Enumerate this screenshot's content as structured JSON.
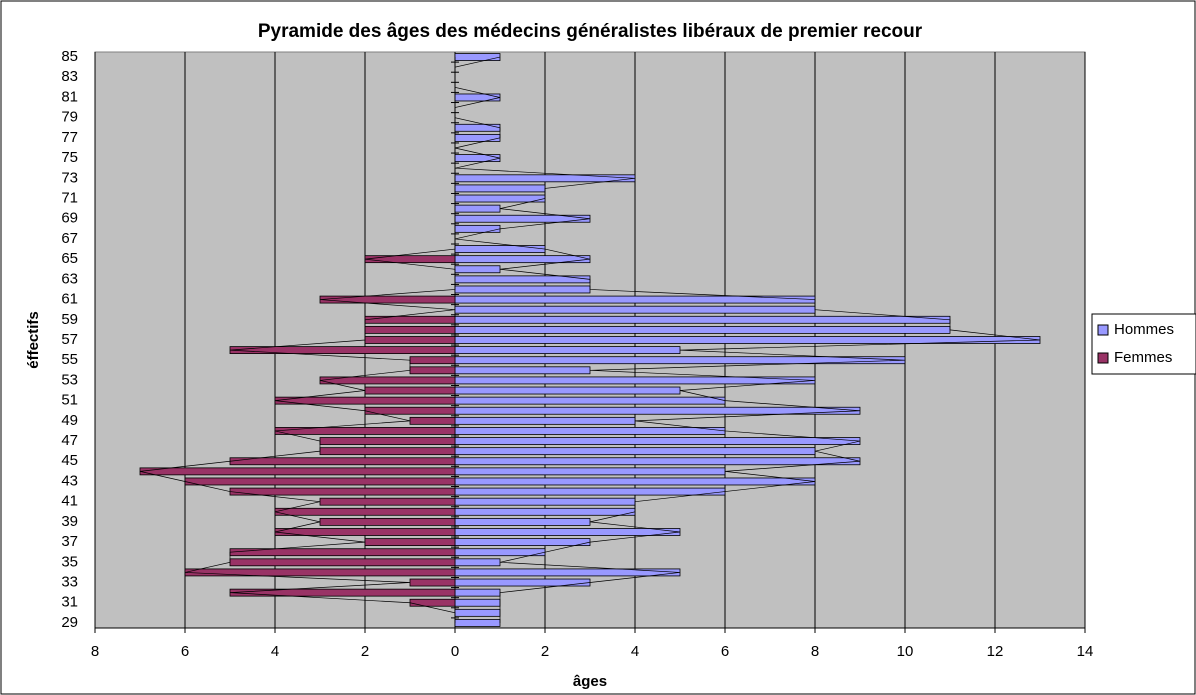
{
  "chart_data": {
    "type": "bar",
    "orientation": "horizontal",
    "title": "Pyramide des âges des médecins généralistes libéraux de premier recour",
    "x_label": "âges",
    "y_label": "éffectifs",
    "categories": [
      "29",
      null,
      "31",
      null,
      "33",
      null,
      "35",
      null,
      "37",
      null,
      "39",
      null,
      "41",
      null,
      "43",
      null,
      "45",
      null,
      "47",
      null,
      "49",
      null,
      "51",
      null,
      "53",
      null,
      "55",
      null,
      "57",
      null,
      "59",
      null,
      "61",
      null,
      "63",
      null,
      "65",
      null,
      "67",
      null,
      "69",
      null,
      "71",
      null,
      "73",
      null,
      "75",
      null,
      "77",
      null,
      "79",
      null,
      "81",
      null,
      "83",
      null,
      "85"
    ],
    "series": [
      {
        "name": "Hommes",
        "color": "#9999ff",
        "values": [
          1,
          1,
          1,
          1,
          3,
          5,
          1,
          2,
          3,
          5,
          3,
          4,
          4,
          6,
          8,
          6,
          9,
          8,
          9,
          6,
          4,
          9,
          6,
          5,
          8,
          3,
          10,
          5,
          13,
          11,
          11,
          8,
          8,
          3,
          3,
          1,
          3,
          2,
          0,
          1,
          3,
          1,
          2,
          2,
          4,
          0,
          1,
          0,
          1,
          1,
          0,
          0,
          1,
          0,
          0,
          0,
          1
        ]
      },
      {
        "name": "Femmes",
        "color": "#993366",
        "values": [
          0,
          0,
          -1,
          -5,
          -1,
          -6,
          -5,
          -5,
          -2,
          -4,
          -3,
          -4,
          -3,
          -5,
          -6,
          -7,
          -5,
          -3,
          -3,
          -4,
          -1,
          -2,
          -4,
          -2,
          -3,
          -1,
          -1,
          -5,
          -2,
          -2,
          -2,
          0,
          -3,
          0,
          0,
          0,
          -2,
          0,
          0,
          0,
          0,
          0,
          0,
          0,
          0,
          0,
          0,
          0,
          0,
          0,
          0,
          0,
          0,
          0,
          0,
          0,
          0
        ]
      }
    ],
    "xlim": [
      -8,
      14
    ],
    "xticks": [
      {
        "value": -8,
        "label": "8"
      },
      {
        "value": -6,
        "label": "6"
      },
      {
        "value": -4,
        "label": "4"
      },
      {
        "value": -2,
        "label": "2"
      },
      0,
      2,
      4,
      6,
      8,
      10,
      12,
      14
    ],
    "negative_tick_color": "#ff0000",
    "grid": true,
    "legend": "right",
    "plot_background": "#c0c0c0"
  }
}
